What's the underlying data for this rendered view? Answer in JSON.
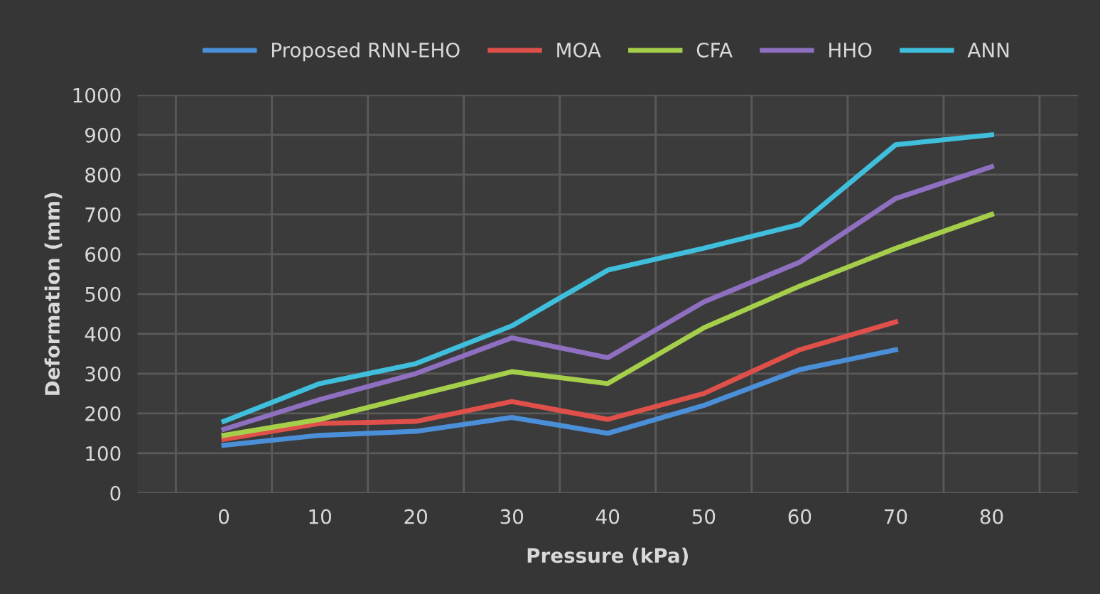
{
  "chart_data": {
    "type": "line",
    "xlabel": "Pressure (kPa)",
    "ylabel": "Deformation (mm)",
    "categories": [
      "0",
      "10",
      "20",
      "30",
      "40",
      "50",
      "60",
      "70",
      "80"
    ],
    "ylim": [
      0,
      1000
    ],
    "yticks": [
      0,
      100,
      200,
      300,
      400,
      500,
      600,
      700,
      800,
      900,
      1000
    ],
    "grid": true,
    "legend": "top",
    "marker": "none",
    "line_style": "solid",
    "series": [
      {
        "name": "Proposed RNN-EHO",
        "color": "#4a8fd8",
        "values": [
          120,
          145,
          155,
          190,
          150,
          220,
          310,
          360,
          null
        ]
      },
      {
        "name": "MOA",
        "color": "#e0504a",
        "values": [
          135,
          175,
          180,
          230,
          185,
          250,
          360,
          430,
          null
        ]
      },
      {
        "name": "CFA",
        "color": "#a5cf4a",
        "values": [
          145,
          185,
          245,
          305,
          275,
          415,
          520,
          615,
          700
        ]
      },
      {
        "name": "HHO",
        "color": "#8e6fc0",
        "values": [
          160,
          235,
          300,
          390,
          340,
          480,
          580,
          740,
          820
        ]
      },
      {
        "name": "ANN",
        "color": "#3fbfdc",
        "values": [
          180,
          275,
          325,
          420,
          560,
          615,
          675,
          875,
          900
        ]
      }
    ]
  }
}
